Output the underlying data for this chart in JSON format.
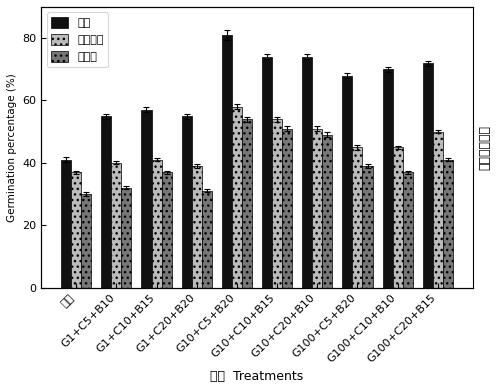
{
  "categories": [
    "对照",
    "G1+C5+B10",
    "G1+C10+B15",
    "G1+C20+B20",
    "G10+C5+B20",
    "G10+C10+B15",
    "G10+C20+B10",
    "G100+C5+B20",
    "G100+C10+B10",
    "G100+C20+B15"
  ],
  "normal": [
    41,
    55,
    57,
    55,
    81,
    74,
    74,
    68,
    70,
    72
  ],
  "drought": [
    37,
    40,
    41,
    39,
    58,
    54,
    51,
    45,
    45,
    50
  ],
  "cold": [
    30,
    32,
    37,
    31,
    54,
    51,
    49,
    39,
    37,
    41
  ],
  "normal_err": [
    0.8,
    0.8,
    0.8,
    0.8,
    1.5,
    0.8,
    0.8,
    0.8,
    0.8,
    0.8
  ],
  "drought_err": [
    0.5,
    0.5,
    0.5,
    0.5,
    0.8,
    0.8,
    0.8,
    0.8,
    0.5,
    0.5
  ],
  "cold_err": [
    0.5,
    0.5,
    0.5,
    0.5,
    0.8,
    0.8,
    0.8,
    0.5,
    0.5,
    0.5
  ],
  "bar_colors": [
    "#111111",
    "#bbbbbb",
    "#777777"
  ],
  "hatches": [
    "",
    "...",
    "..."
  ],
  "legend_labels": [
    "正常",
    "干早处理",
    "冷处理"
  ],
  "xlabel": "处理  Treatments",
  "ylabel_cn": "发芽率（％）",
  "ylabel_en": "Germination percentage (%)",
  "ylim": [
    0,
    90
  ],
  "yticks": [
    0,
    20,
    40,
    60,
    80
  ],
  "bar_width": 0.25
}
